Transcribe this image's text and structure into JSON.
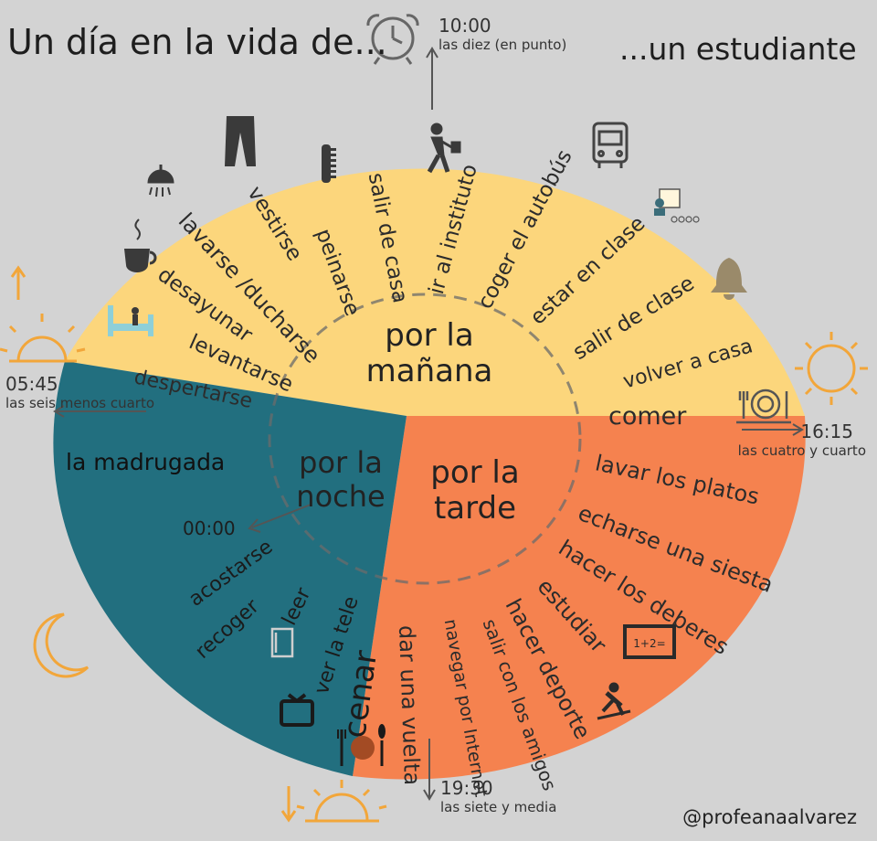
{
  "title_left": "Un día en la vida de...",
  "title_right": "...un estudiante",
  "colors": {
    "morning": "#fcd67c",
    "afternoon": "#f5824f",
    "night": "#226f7f",
    "background": "#d3d3d3",
    "accent_icon": "#f2a63a"
  },
  "sections": {
    "morning": [
      "por la",
      "mañana"
    ],
    "afternoon": [
      "por la",
      "tarde"
    ],
    "night": [
      "por la",
      "noche"
    ]
  },
  "times": {
    "t1000": {
      "time": "10:00",
      "text": "las diez (en punto)"
    },
    "t0545": {
      "time": "05:45",
      "text": "las seis menos cuarto"
    },
    "t1615": {
      "time": "16:15",
      "text": "las cuatro y cuarto"
    },
    "t1930": {
      "time": "19:30",
      "text": "las siete y media"
    },
    "t0000": {
      "time": "00:00"
    }
  },
  "activities": {
    "morning": [
      "despertarse",
      "levantarse",
      "desayunar",
      "lavarse /ducharse",
      "vestirse",
      "peinarse",
      "salir de casa",
      "ir al instituto",
      "coger el autobús",
      "estar en clase",
      "salir de clase",
      "volver a casa"
    ],
    "afternoon": [
      "comer",
      "lavar los platos",
      "echarse una siesta",
      "hacer los deberes",
      "estudiar",
      "hacer deporte",
      "salir con los amigos",
      "navegar por Internet",
      "dar una vuelta"
    ],
    "night": [
      "cenar",
      "ver la tele",
      "leer",
      "recoger",
      "acostarse",
      "la madrugada"
    ]
  },
  "icons": [
    "alarm-clock-icon",
    "bed-icon",
    "coffee-icon",
    "shower-icon",
    "trousers-icon",
    "comb-icon",
    "walking-person-icon",
    "bus-icon",
    "classroom-icon",
    "bell-icon",
    "sunrise-icon",
    "sun-icon",
    "plate-icon",
    "blackboard-icon",
    "skateboard-icon",
    "sunset-icon",
    "moon-icon",
    "tv-icon",
    "book-icon",
    "dinner-icon"
  ],
  "credit": "@profeanaalvarez"
}
